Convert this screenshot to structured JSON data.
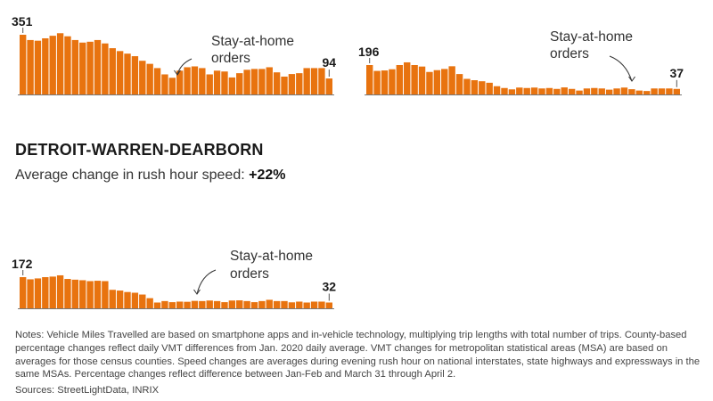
{
  "colors": {
    "bar": "#E8730F",
    "axis": "#777777",
    "text": "#1a1a1a"
  },
  "detroit": {
    "title": "DETROIT-WARREN-DEARBORN",
    "metric_label": "Average change in rush hour speed:",
    "metric_value": "+22%"
  },
  "notes": "Notes: Vehicle Miles Travelled are based on smartphone apps and in-vehicle technology, multiplying trip lengths with total number of trips. County-based percentage changes reflect daily VMT differences from Jan. 2020 daily average. VMT changes for metropolitan statistical areas (MSA) are based on averages for those census counties. Speed changes are averages during evening rush hour on national interstates, state highways and expressways in the same MSAs. Percentage changes reflect difference between Jan-Feb and March 31 through April 2.",
  "sources": "Sources: StreetLightData, INRIX",
  "chart_data": [
    {
      "type": "bar",
      "start_label": "351",
      "end_label": "94",
      "annotation": [
        "Stay-at-home",
        "orders"
      ],
      "values": [
        351,
        320,
        316,
        330,
        345,
        360,
        342,
        320,
        305,
        310,
        320,
        300,
        272,
        255,
        240,
        225,
        198,
        180,
        155,
        118,
        98,
        140,
        160,
        165,
        155,
        118,
        140,
        135,
        100,
        125,
        145,
        150,
        150,
        160,
        130,
        105,
        120,
        125,
        155,
        155,
        155,
        94
      ]
    },
    {
      "type": "bar",
      "start_label": "196",
      "end_label": "37",
      "annotation": [
        "Stay-at-home",
        "orders"
      ],
      "values": [
        196,
        157,
        160,
        168,
        196,
        214,
        196,
        186,
        150,
        162,
        170,
        188,
        136,
        104,
        95,
        88,
        78,
        55,
        43,
        34,
        46,
        43,
        46,
        40,
        43,
        37,
        47,
        37,
        26,
        40,
        43,
        40,
        32,
        40,
        46,
        35,
        26,
        23,
        40,
        40,
        40,
        37
      ]
    },
    {
      "type": "bar",
      "start_label": "172",
      "end_label": "32",
      "annotation": [
        "Stay-at-home",
        "orders"
      ],
      "values": [
        172,
        160,
        165,
        172,
        175,
        182,
        162,
        158,
        155,
        150,
        152,
        150,
        102,
        98,
        90,
        86,
        76,
        56,
        32,
        40,
        34,
        37,
        36,
        41,
        40,
        43,
        40,
        34,
        43,
        44,
        40,
        34,
        40,
        47,
        40,
        40,
        33,
        37,
        32,
        37,
        37,
        32
      ]
    }
  ]
}
